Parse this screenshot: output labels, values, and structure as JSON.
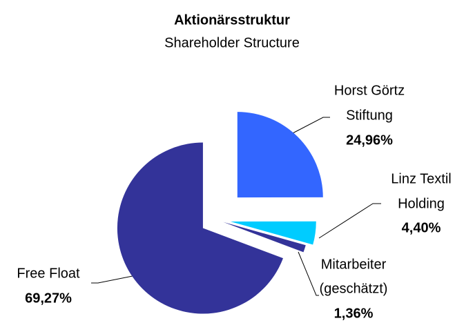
{
  "chart_data": {
    "type": "pie",
    "title": "Aktionärsstruktur",
    "subtitle": "Shareholder Structure",
    "categories": [
      [
        "Horst Görtz",
        "Stiftung"
      ],
      [
        "Linz Textil",
        "Holding"
      ],
      [
        "Mitarbeiter",
        "(geschätzt)"
      ],
      [
        "Free Float"
      ]
    ],
    "values": [
      24.96,
      4.4,
      1.36,
      69.27
    ],
    "value_labels": [
      "24,96%",
      "4,40%",
      "1,36%",
      "69,27%"
    ],
    "colors": [
      "#3366ff",
      "#00ccff",
      "#333399",
      "#333399"
    ]
  }
}
